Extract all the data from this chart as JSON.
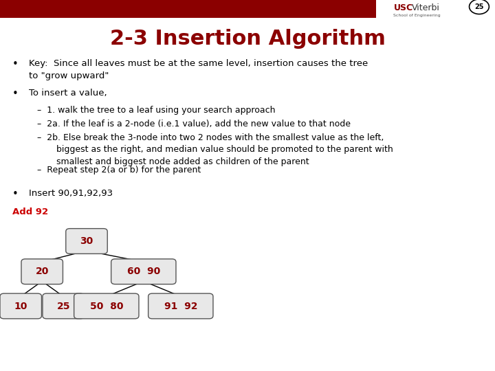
{
  "title": "2-3 Insertion Algorithm",
  "title_color": "#8B0000",
  "title_fontsize": 22,
  "header_bar_color": "#8B0000",
  "background_color": "#FFFFFF",
  "page_number": "25",
  "school_text": "School of Engineering",
  "bullet_fontsize": 9.5,
  "sub_bullet_fontsize": 9.0,
  "bullets": [
    "Key:  Since all leaves must be at the same level, insertion causes the tree\nto \"grow upward\"",
    "To insert a value,"
  ],
  "sub_bullets": [
    "–  1. walk the tree to a leaf using your search approach",
    "–  2a. If the leaf is a 2-node (i.e.1 value), add the new value to that node",
    "–  2b. Else break the 3-node into two 2 nodes with the smallest value as the left,\n       biggest as the right, and median value should be promoted to the parent with\n       smallest and biggest node added as children of the parent",
    "–  Repeat step 2(a or b) for the parent"
  ],
  "last_bullet": "Insert 90,91,92,93",
  "add_label": "Add 92",
  "add_label_color": "#CC0000",
  "node_fill": "#E8E8E8",
  "node_text_color": "#8B0000",
  "node_edge_color": "#555555"
}
